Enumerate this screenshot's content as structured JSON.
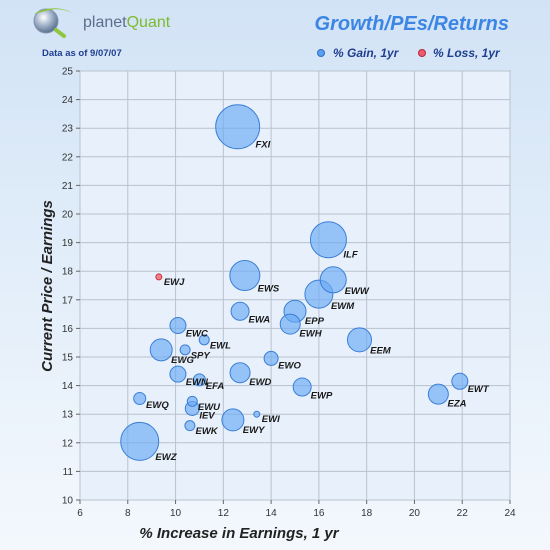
{
  "logo": {
    "brand_part1": "planet",
    "brand_part2": "Quant"
  },
  "data_as_of": "Data as of 9/07/07",
  "chart_data": {
    "type": "scatter",
    "bubble": true,
    "title": "Growth/PEs/Returns",
    "xlabel": "% Increase in Earnings, 1 yr",
    "ylabel": "Current Price / Earnings",
    "xlim": [
      6,
      24
    ],
    "ylim": [
      10,
      25
    ],
    "xticks": [
      6,
      8,
      10,
      12,
      14,
      16,
      18,
      20,
      22,
      24
    ],
    "yticks": [
      10,
      11,
      12,
      13,
      14,
      15,
      16,
      17,
      18,
      19,
      20,
      21,
      22,
      23,
      24,
      25
    ],
    "grid": true,
    "legend_position": "top-right",
    "legend": [
      {
        "label": "% Gain, 1yr",
        "color": "#5aa0f0"
      },
      {
        "label": "% Loss, 1yr",
        "color": "#f05a6e"
      }
    ],
    "colors": {
      "gain_fill": "#6aaaf4",
      "gain_stroke": "#3b7fd6",
      "loss_fill": "#f07a86",
      "loss_stroke": "#c83040"
    },
    "points": [
      {
        "label": "FXI",
        "x": 12.6,
        "y": 23.05,
        "size": 22,
        "type": "gain"
      },
      {
        "label": "ILF",
        "x": 16.4,
        "y": 19.1,
        "size": 18,
        "type": "gain"
      },
      {
        "label": "EWJ",
        "x": 9.3,
        "y": 17.8,
        "size": 3,
        "type": "loss"
      },
      {
        "label": "EWS",
        "x": 12.9,
        "y": 17.85,
        "size": 15,
        "type": "gain"
      },
      {
        "label": "EWW",
        "x": 16.6,
        "y": 17.7,
        "size": 13,
        "type": "gain"
      },
      {
        "label": "EWM",
        "x": 16.0,
        "y": 17.2,
        "size": 14,
        "type": "gain"
      },
      {
        "label": "EPP",
        "x": 15.0,
        "y": 16.6,
        "size": 11,
        "type": "gain"
      },
      {
        "label": "EWA",
        "x": 12.7,
        "y": 16.6,
        "size": 9,
        "type": "gain"
      },
      {
        "label": "EWC",
        "x": 10.1,
        "y": 16.1,
        "size": 8,
        "type": "gain"
      },
      {
        "label": "EWH",
        "x": 14.8,
        "y": 16.15,
        "size": 10,
        "type": "gain"
      },
      {
        "label": "EWL",
        "x": 11.2,
        "y": 15.6,
        "size": 5,
        "type": "gain"
      },
      {
        "label": "EEM",
        "x": 17.7,
        "y": 15.6,
        "size": 12,
        "type": "gain"
      },
      {
        "label": "EWG",
        "x": 9.4,
        "y": 15.25,
        "size": 11,
        "type": "gain"
      },
      {
        "label": "SPY",
        "x": 10.4,
        "y": 15.25,
        "size": 5,
        "type": "gain"
      },
      {
        "label": "EWO",
        "x": 14.0,
        "y": 14.95,
        "size": 7,
        "type": "gain"
      },
      {
        "label": "EWN",
        "x": 10.1,
        "y": 14.4,
        "size": 8,
        "type": "gain"
      },
      {
        "label": "EWD",
        "x": 12.7,
        "y": 14.45,
        "size": 10,
        "type": "gain"
      },
      {
        "label": "EFA",
        "x": 11.0,
        "y": 14.2,
        "size": 6,
        "type": "gain"
      },
      {
        "label": "EWP",
        "x": 15.3,
        "y": 13.95,
        "size": 9,
        "type": "gain"
      },
      {
        "label": "EWT",
        "x": 21.9,
        "y": 14.15,
        "size": 8,
        "type": "gain"
      },
      {
        "label": "EZA",
        "x": 21.0,
        "y": 13.7,
        "size": 10,
        "type": "gain"
      },
      {
        "label": "EWQ",
        "x": 8.5,
        "y": 13.55,
        "size": 6,
        "type": "gain"
      },
      {
        "label": "EWU",
        "x": 10.7,
        "y": 13.45,
        "size": 5,
        "type": "gain"
      },
      {
        "label": "IEV",
        "x": 10.7,
        "y": 13.2,
        "size": 7,
        "type": "gain"
      },
      {
        "label": "EWI",
        "x": 13.4,
        "y": 13.0,
        "size": 3,
        "type": "gain"
      },
      {
        "label": "EWY",
        "x": 12.4,
        "y": 12.8,
        "size": 11,
        "type": "gain"
      },
      {
        "label": "EWK",
        "x": 10.6,
        "y": 12.6,
        "size": 5,
        "type": "gain"
      },
      {
        "label": "EWZ",
        "x": 8.5,
        "y": 12.05,
        "size": 19,
        "type": "gain"
      }
    ]
  }
}
